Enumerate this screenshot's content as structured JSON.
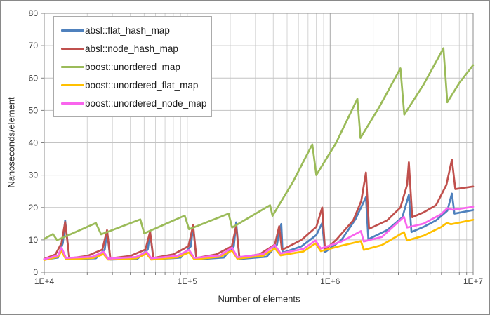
{
  "chart_data": {
    "type": "line",
    "title": "",
    "xlabel": "Number of elements",
    "ylabel": "Nanoseconds/element",
    "x_scale": "log",
    "x_range": [
      10000,
      10000000
    ],
    "y_range": [
      0,
      80
    ],
    "x_tick_labels": [
      "1E+4",
      "1E+5",
      "1E+6",
      "1E+7"
    ],
    "y_tick_labels": [
      "0",
      "10",
      "20",
      "30",
      "40",
      "50",
      "60",
      "70",
      "80"
    ],
    "grid": true,
    "legend_position": "top-left",
    "series": [
      {
        "name": "absl::flat_hash_map",
        "color": "#4F81BD",
        "points": [
          [
            10000,
            3.9
          ],
          [
            12500,
            4.5
          ],
          [
            13500,
            9.0
          ],
          [
            14000,
            16.0
          ],
          [
            15000,
            4.0
          ],
          [
            23000,
            4.3
          ],
          [
            26500,
            7.0
          ],
          [
            27500,
            12.8
          ],
          [
            29000,
            3.9
          ],
          [
            45000,
            4.2
          ],
          [
            53000,
            7.0
          ],
          [
            55000,
            12.3
          ],
          [
            58000,
            4.0
          ],
          [
            90000,
            4.5
          ],
          [
            106000,
            8.0
          ],
          [
            110000,
            14.2
          ],
          [
            116000,
            4.0
          ],
          [
            180000,
            4.5
          ],
          [
            212000,
            8.0
          ],
          [
            220000,
            15.4
          ],
          [
            232000,
            4.1
          ],
          [
            360000,
            4.8
          ],
          [
            425000,
            8.5
          ],
          [
            440000,
            12.4
          ],
          [
            455000,
            14.9
          ],
          [
            465000,
            6.0
          ],
          [
            630000,
            8.0
          ],
          [
            800000,
            11.5
          ],
          [
            880000,
            15.2
          ],
          [
            920000,
            6.2
          ],
          [
            1200000,
            10.0
          ],
          [
            1500000,
            16.3
          ],
          [
            1780000,
            23.2
          ],
          [
            1850000,
            10.2
          ],
          [
            2500000,
            13.0
          ],
          [
            3200000,
            17.0
          ],
          [
            3550000,
            23.9
          ],
          [
            3700000,
            12.4
          ],
          [
            4500000,
            14.0
          ],
          [
            5500000,
            16.0
          ],
          [
            6600000,
            19.0
          ],
          [
            7100000,
            24.3
          ],
          [
            7400000,
            18.1
          ],
          [
            10000000,
            19.2
          ]
        ]
      },
      {
        "name": "absl::node_hash_map",
        "color": "#C0504D",
        "points": [
          [
            10000,
            4.1
          ],
          [
            12000,
            5.5
          ],
          [
            13200,
            9.0
          ],
          [
            14000,
            15.5
          ],
          [
            15000,
            4.3
          ],
          [
            20000,
            5.0
          ],
          [
            25500,
            7.0
          ],
          [
            27500,
            13.0
          ],
          [
            29000,
            4.3
          ],
          [
            40000,
            5.0
          ],
          [
            51000,
            7.0
          ],
          [
            55000,
            12.5
          ],
          [
            58000,
            4.4
          ],
          [
            80000,
            5.5
          ],
          [
            102000,
            8.0
          ],
          [
            110000,
            14.5
          ],
          [
            116000,
            4.4
          ],
          [
            160000,
            5.5
          ],
          [
            205000,
            8.0
          ],
          [
            220000,
            14.2
          ],
          [
            232000,
            4.5
          ],
          [
            320000,
            5.5
          ],
          [
            410000,
            8.5
          ],
          [
            440000,
            14.2
          ],
          [
            460000,
            6.9
          ],
          [
            630000,
            10.0
          ],
          [
            800000,
            14.0
          ],
          [
            880000,
            20.0
          ],
          [
            920000,
            6.9
          ],
          [
            1100000,
            10.0
          ],
          [
            1450000,
            16.0
          ],
          [
            1650000,
            22.0
          ],
          [
            1780000,
            30.8
          ],
          [
            1870000,
            13.4
          ],
          [
            2500000,
            16.0
          ],
          [
            3100000,
            20.0
          ],
          [
            3450000,
            27.0
          ],
          [
            3550000,
            34.0
          ],
          [
            3750000,
            17.0
          ],
          [
            4500000,
            18.5
          ],
          [
            5500000,
            20.7
          ],
          [
            6500000,
            27.0
          ],
          [
            7100000,
            34.8
          ],
          [
            7500000,
            25.7
          ],
          [
            10000000,
            26.5
          ]
        ]
      },
      {
        "name": "boost::unordered_map",
        "color": "#9BBB59",
        "points": [
          [
            10000,
            10.3
          ],
          [
            11500,
            11.8
          ],
          [
            12300,
            9.9
          ],
          [
            23000,
            15.2
          ],
          [
            25000,
            11.7
          ],
          [
            47000,
            16.3
          ],
          [
            50000,
            12.0
          ],
          [
            96000,
            17.5
          ],
          [
            103000,
            13.3
          ],
          [
            195000,
            18.1
          ],
          [
            206000,
            13.8
          ],
          [
            380000,
            20.7
          ],
          [
            395000,
            17.4
          ],
          [
            550000,
            28.0
          ],
          [
            750000,
            39.5
          ],
          [
            800000,
            30.0
          ],
          [
            1100000,
            40.0
          ],
          [
            1550000,
            53.6
          ],
          [
            1630000,
            41.5
          ],
          [
            2200000,
            51.0
          ],
          [
            3100000,
            63.0
          ],
          [
            3300000,
            48.7
          ],
          [
            4500000,
            58.0
          ],
          [
            6200000,
            69.2
          ],
          [
            6600000,
            52.5
          ],
          [
            8000000,
            58.5
          ],
          [
            10000000,
            64.0
          ]
        ]
      },
      {
        "name": "boost::unordered_flat_map",
        "color": "#FFC000",
        "points": [
          [
            10000,
            3.8
          ],
          [
            12500,
            4.8
          ],
          [
            13200,
            6.5
          ],
          [
            14200,
            4.0
          ],
          [
            22000,
            4.4
          ],
          [
            26000,
            5.6
          ],
          [
            28000,
            3.9
          ],
          [
            44000,
            4.3
          ],
          [
            52000,
            5.7
          ],
          [
            56000,
            3.9
          ],
          [
            85000,
            4.6
          ],
          [
            103000,
            6.1
          ],
          [
            112000,
            4.0
          ],
          [
            170000,
            4.8
          ],
          [
            206000,
            6.7
          ],
          [
            224000,
            4.2
          ],
          [
            340000,
            5.1
          ],
          [
            410000,
            7.4
          ],
          [
            450000,
            5.2
          ],
          [
            650000,
            6.4
          ],
          [
            790000,
            8.9
          ],
          [
            860000,
            6.5
          ],
          [
            1200000,
            8.2
          ],
          [
            1640000,
            9.6
          ],
          [
            1720000,
            6.9
          ],
          [
            2300000,
            8.4
          ],
          [
            3280000,
            12.4
          ],
          [
            3450000,
            9.8
          ],
          [
            4500000,
            11.3
          ],
          [
            6000000,
            14.0
          ],
          [
            6550000,
            15.2
          ],
          [
            7000000,
            14.8
          ],
          [
            10000000,
            16.2
          ]
        ]
      },
      {
        "name": "boost::unordered_node_map",
        "color": "#F964ED",
        "points": [
          [
            10000,
            4.0
          ],
          [
            12500,
            5.2
          ],
          [
            13200,
            7.6
          ],
          [
            14200,
            4.4
          ],
          [
            22000,
            4.8
          ],
          [
            26000,
            6.3
          ],
          [
            28000,
            4.2
          ],
          [
            44000,
            4.7
          ],
          [
            52000,
            6.3
          ],
          [
            56000,
            4.3
          ],
          [
            85000,
            5.0
          ],
          [
            103000,
            6.9
          ],
          [
            112000,
            4.4
          ],
          [
            170000,
            5.2
          ],
          [
            206000,
            7.6
          ],
          [
            224000,
            4.6
          ],
          [
            340000,
            5.6
          ],
          [
            410000,
            8.4
          ],
          [
            450000,
            5.8
          ],
          [
            650000,
            7.2
          ],
          [
            790000,
            9.8
          ],
          [
            860000,
            7.3
          ],
          [
            1200000,
            9.5
          ],
          [
            1640000,
            12.7
          ],
          [
            1720000,
            9.5
          ],
          [
            2300000,
            10.9
          ],
          [
            3280000,
            17.1
          ],
          [
            3450000,
            13.8
          ],
          [
            4500000,
            15.0
          ],
          [
            6000000,
            18.0
          ],
          [
            6600000,
            19.8
          ],
          [
            7200000,
            19.3
          ],
          [
            10000000,
            20.2
          ]
        ]
      }
    ]
  }
}
